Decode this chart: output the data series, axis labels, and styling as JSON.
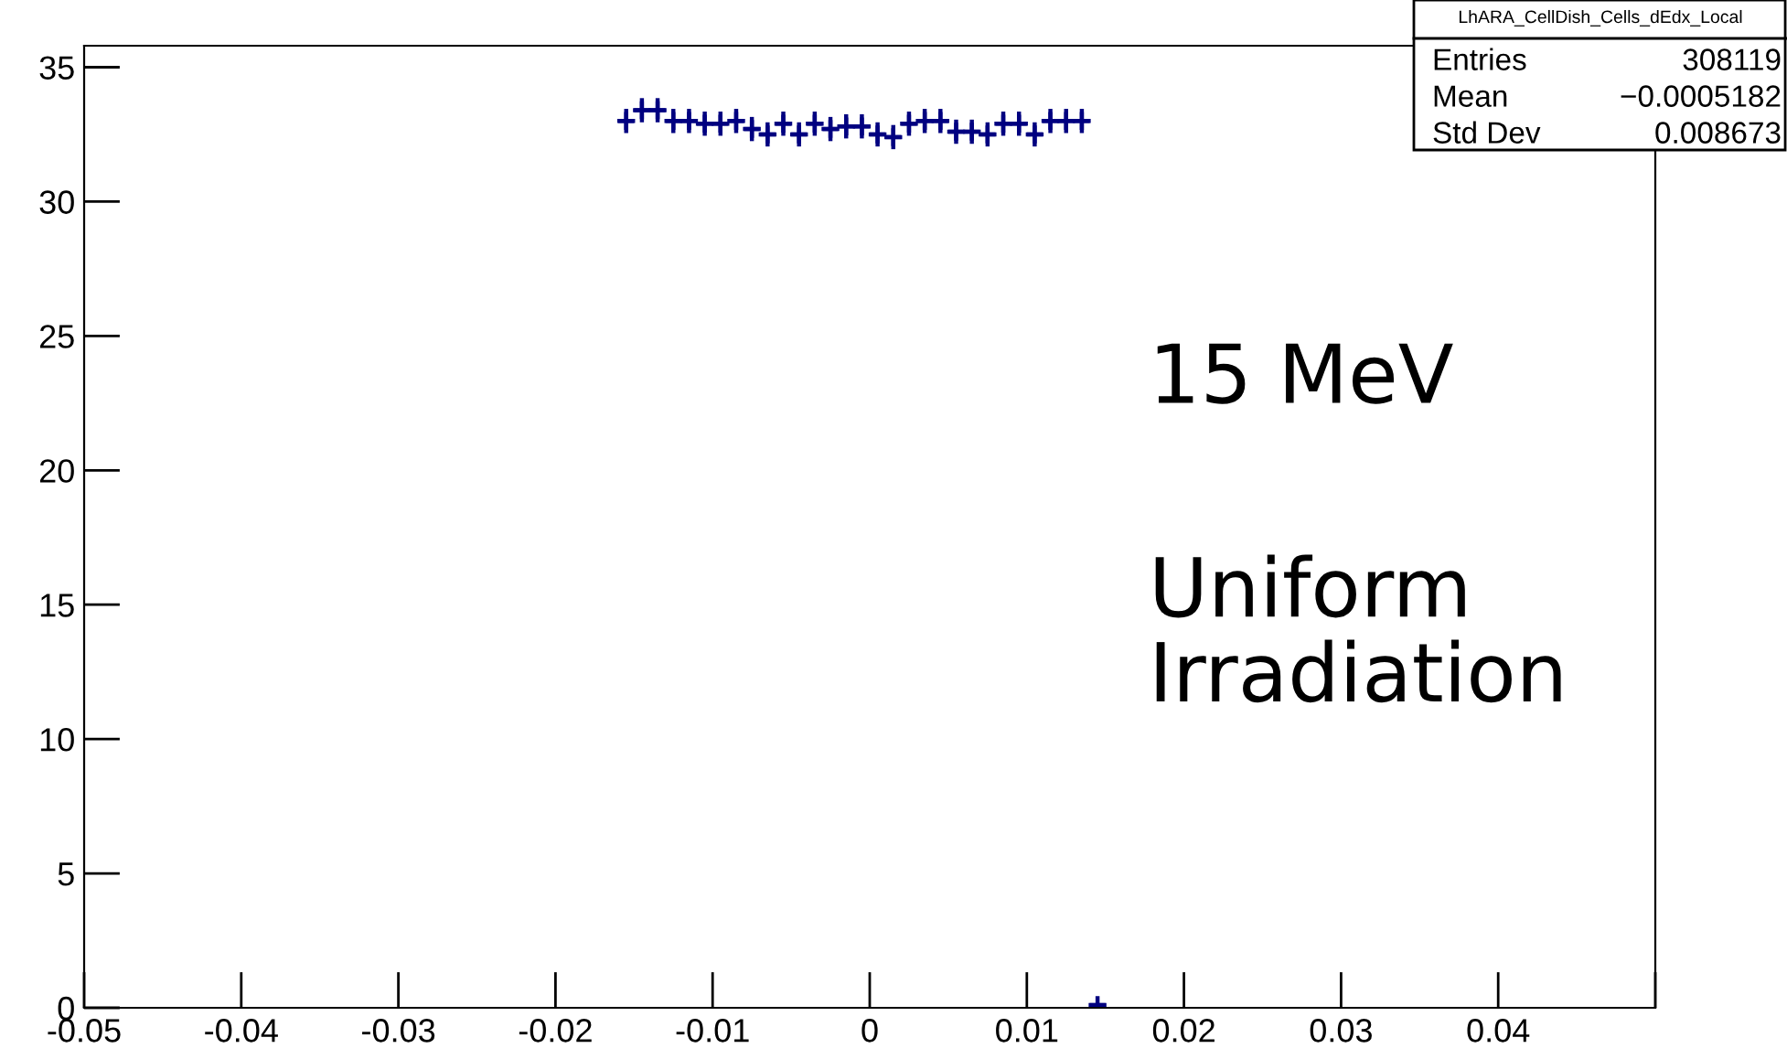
{
  "chart_data": {
    "type": "scatter",
    "color": "#000080",
    "marker": "cross",
    "x": [
      -0.0155,
      -0.0145,
      -0.0135,
      -0.0125,
      -0.0115,
      -0.0105,
      -0.0095,
      -0.0085,
      -0.0075,
      -0.0065,
      -0.0055,
      -0.0045,
      -0.0035,
      -0.0025,
      -0.0015,
      -0.0005,
      0.0005,
      0.0015,
      0.0025,
      0.0035,
      0.0045,
      0.0055,
      0.0065,
      0.0075,
      0.0085,
      0.0095,
      0.0105,
      0.0115,
      0.0125,
      0.0135,
      0.0145
    ],
    "values": [
      33.0,
      33.4,
      33.4,
      33.0,
      33.0,
      32.9,
      32.9,
      33.0,
      32.7,
      32.5,
      32.9,
      32.5,
      32.9,
      32.7,
      32.8,
      32.8,
      32.5,
      32.4,
      32.9,
      33.0,
      33.0,
      32.6,
      32.6,
      32.5,
      32.9,
      32.9,
      32.5,
      33.0,
      33.0,
      33.0,
      0.1
    ],
    "errors": [
      0.45,
      0.45,
      0.45,
      0.45,
      0.45,
      0.45,
      0.45,
      0.45,
      0.45,
      0.45,
      0.45,
      0.45,
      0.45,
      0.45,
      0.45,
      0.45,
      0.45,
      0.45,
      0.45,
      0.45,
      0.45,
      0.45,
      0.45,
      0.45,
      0.45,
      0.45,
      0.45,
      0.45,
      0.45,
      0.45,
      null
    ],
    "xerrors": [
      0.0005,
      0.0005,
      0.0005,
      0.0005,
      0.0005,
      0.0005,
      0.0005,
      0.0005,
      0.0005,
      0.0005,
      0.0005,
      0.0005,
      0.0005,
      0.0005,
      0.0005,
      0.0005,
      0.0005,
      0.0005,
      0.0005,
      0.0005,
      0.0005,
      0.0005,
      0.0005,
      0.0005,
      0.0005,
      0.0005,
      0.0005,
      0.0005,
      0.0005,
      0.0005,
      0.0005
    ],
    "xlim": [
      -0.05,
      0.05
    ],
    "xticks": [
      -0.05,
      -0.04,
      -0.03,
      -0.02,
      -0.01,
      0,
      0.01,
      0.02,
      0.03,
      0.04,
      {
        "value": 0.05,
        "label": null
      }
    ],
    "ylim": [
      0,
      35.8
    ],
    "yticks": [
      0,
      5,
      10,
      15,
      20,
      25,
      30,
      35
    ],
    "grid": false,
    "legend": false,
    "annotations": [
      "LhARA_CellDish_Cells_dEdx_Local",
      "Entries 308119",
      "Mean −0.0005182",
      "Std Dev 0.008673",
      "15 MeV",
      "Uniform\nIrradiation"
    ]
  }
}
